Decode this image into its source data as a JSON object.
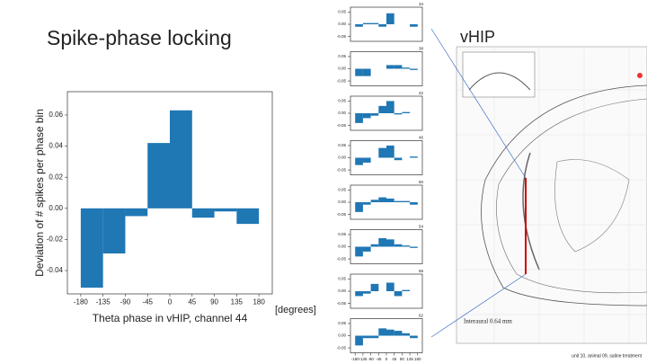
{
  "slide": {
    "title": "Spike-phase locking",
    "right_title": "vHIP",
    "atlas_label": "Interaural 0.64 mm",
    "note": "unit 10, animal 09, saline treatment"
  },
  "chart_data": [
    {
      "type": "histogram",
      "ylabel": "Deviation of # spikes per phase bin",
      "xlabel": "Theta phase in vHIP, channel 44",
      "annotation": "[degrees]",
      "color": "#1f77b4",
      "bins": [
        -180,
        -135,
        -90,
        -45,
        0,
        45,
        90,
        135,
        180
      ],
      "values": [
        -0.051,
        -0.029,
        -0.005,
        0.042,
        0.063,
        -0.006,
        -0.002,
        -0.01
      ],
      "xlim": [
        -207,
        207
      ],
      "ylim": [
        -0.055,
        0.075
      ],
      "xticks": [
        -180,
        -135,
        -90,
        -45,
        0,
        45,
        90,
        135,
        180
      ],
      "yticks": [
        0.06,
        0.04,
        0.02,
        {
          "value": 0,
          "label": "0.00"
        },
        -0.02,
        -0.04
      ]
    },
    {
      "type": "histogram",
      "title": "34",
      "color": "#1f77b4",
      "bins": [
        -180,
        -135,
        -90,
        -45,
        0,
        45,
        90,
        135,
        180
      ],
      "values": [
        -0.01,
        0.005,
        0.005,
        -0.01,
        0.045,
        0.0,
        0.0,
        -0.01
      ],
      "xlim": [
        -207,
        207
      ],
      "ylim": [
        -0.07,
        0.07
      ],
      "yticks": [
        0.05,
        {
          "value": 0,
          "label": "0.00"
        },
        -0.05
      ]
    },
    {
      "type": "histogram",
      "title": "38",
      "color": "#1f77b4",
      "bins": [
        -180,
        -135,
        -90,
        -45,
        0,
        45,
        90,
        135,
        180
      ],
      "values": [
        -0.03,
        -0.03,
        0.0,
        0.0,
        0.015,
        0.015,
        0.005,
        -0.005
      ],
      "xlim": [
        -207,
        207
      ],
      "ylim": [
        -0.07,
        0.07
      ],
      "yticks": [
        0.05,
        {
          "value": 0,
          "label": "0.00"
        },
        -0.05
      ]
    },
    {
      "type": "histogram",
      "title": "42",
      "color": "#1f77b4",
      "bins": [
        -180,
        -135,
        -90,
        -45,
        0,
        45,
        90,
        135,
        180
      ],
      "values": [
        -0.04,
        -0.02,
        -0.01,
        0.03,
        0.05,
        -0.005,
        0.005,
        0.0
      ],
      "xlim": [
        -207,
        207
      ],
      "ylim": [
        -0.07,
        0.07
      ],
      "yticks": [
        0.05,
        {
          "value": 0,
          "label": "0.00"
        },
        -0.05
      ]
    },
    {
      "type": "histogram",
      "title": "46",
      "color": "#1f77b4",
      "bins": [
        -180,
        -135,
        -90,
        -45,
        0,
        45,
        90,
        135,
        180
      ],
      "values": [
        -0.03,
        -0.02,
        0.0,
        0.04,
        0.05,
        -0.01,
        0.0,
        0.005
      ],
      "xlim": [
        -207,
        207
      ],
      "ylim": [
        -0.07,
        0.07
      ],
      "yticks": [
        0.05,
        {
          "value": 0,
          "label": "0.00"
        },
        -0.05
      ]
    },
    {
      "type": "histogram",
      "title": "50",
      "color": "#1f77b4",
      "bins": [
        -180,
        -135,
        -90,
        -45,
        0,
        45,
        90,
        135,
        180
      ],
      "values": [
        -0.04,
        -0.01,
        0.01,
        0.02,
        0.015,
        0.005,
        0.005,
        -0.01
      ],
      "xlim": [
        -207,
        207
      ],
      "ylim": [
        -0.07,
        0.07
      ],
      "yticks": [
        0.05,
        {
          "value": 0,
          "label": "0.00"
        },
        -0.05
      ]
    },
    {
      "type": "histogram",
      "title": "54",
      "color": "#1f77b4",
      "bins": [
        -180,
        -135,
        -90,
        -45,
        0,
        45,
        90,
        135,
        180
      ],
      "values": [
        -0.04,
        -0.02,
        0.01,
        0.035,
        0.03,
        0.01,
        0.005,
        -0.005
      ],
      "xlim": [
        -207,
        207
      ],
      "ylim": [
        -0.07,
        0.07
      ],
      "yticks": [
        0.05,
        {
          "value": 0,
          "label": "0.00"
        },
        -0.05
      ]
    },
    {
      "type": "histogram",
      "title": "58",
      "color": "#1f77b4",
      "bins": [
        -180,
        -135,
        -90,
        -45,
        0,
        45,
        90,
        135,
        180
      ],
      "values": [
        -0.02,
        -0.01,
        0.03,
        0.0,
        0.035,
        -0.02,
        0.005,
        0.0
      ],
      "xlim": [
        -207,
        207
      ],
      "ylim": [
        -0.07,
        0.07
      ],
      "yticks": [
        0.05,
        {
          "value": 0,
          "label": "0.00"
        },
        -0.05
      ]
    },
    {
      "type": "histogram",
      "title": "62",
      "color": "#1f77b4",
      "bins": [
        -180,
        -135,
        -90,
        -45,
        0,
        45,
        90,
        135,
        180
      ],
      "values": [
        -0.04,
        -0.01,
        -0.01,
        0.03,
        0.025,
        0.02,
        0.01,
        -0.01
      ],
      "xlim": [
        -207,
        207
      ],
      "ylim": [
        -0.07,
        0.07
      ],
      "yticks": [
        0.05,
        {
          "value": 0,
          "label": "0.00"
        },
        -0.05
      ],
      "xticks": [
        -180,
        -135,
        -90,
        -45,
        0,
        45,
        90,
        135,
        180
      ]
    }
  ]
}
